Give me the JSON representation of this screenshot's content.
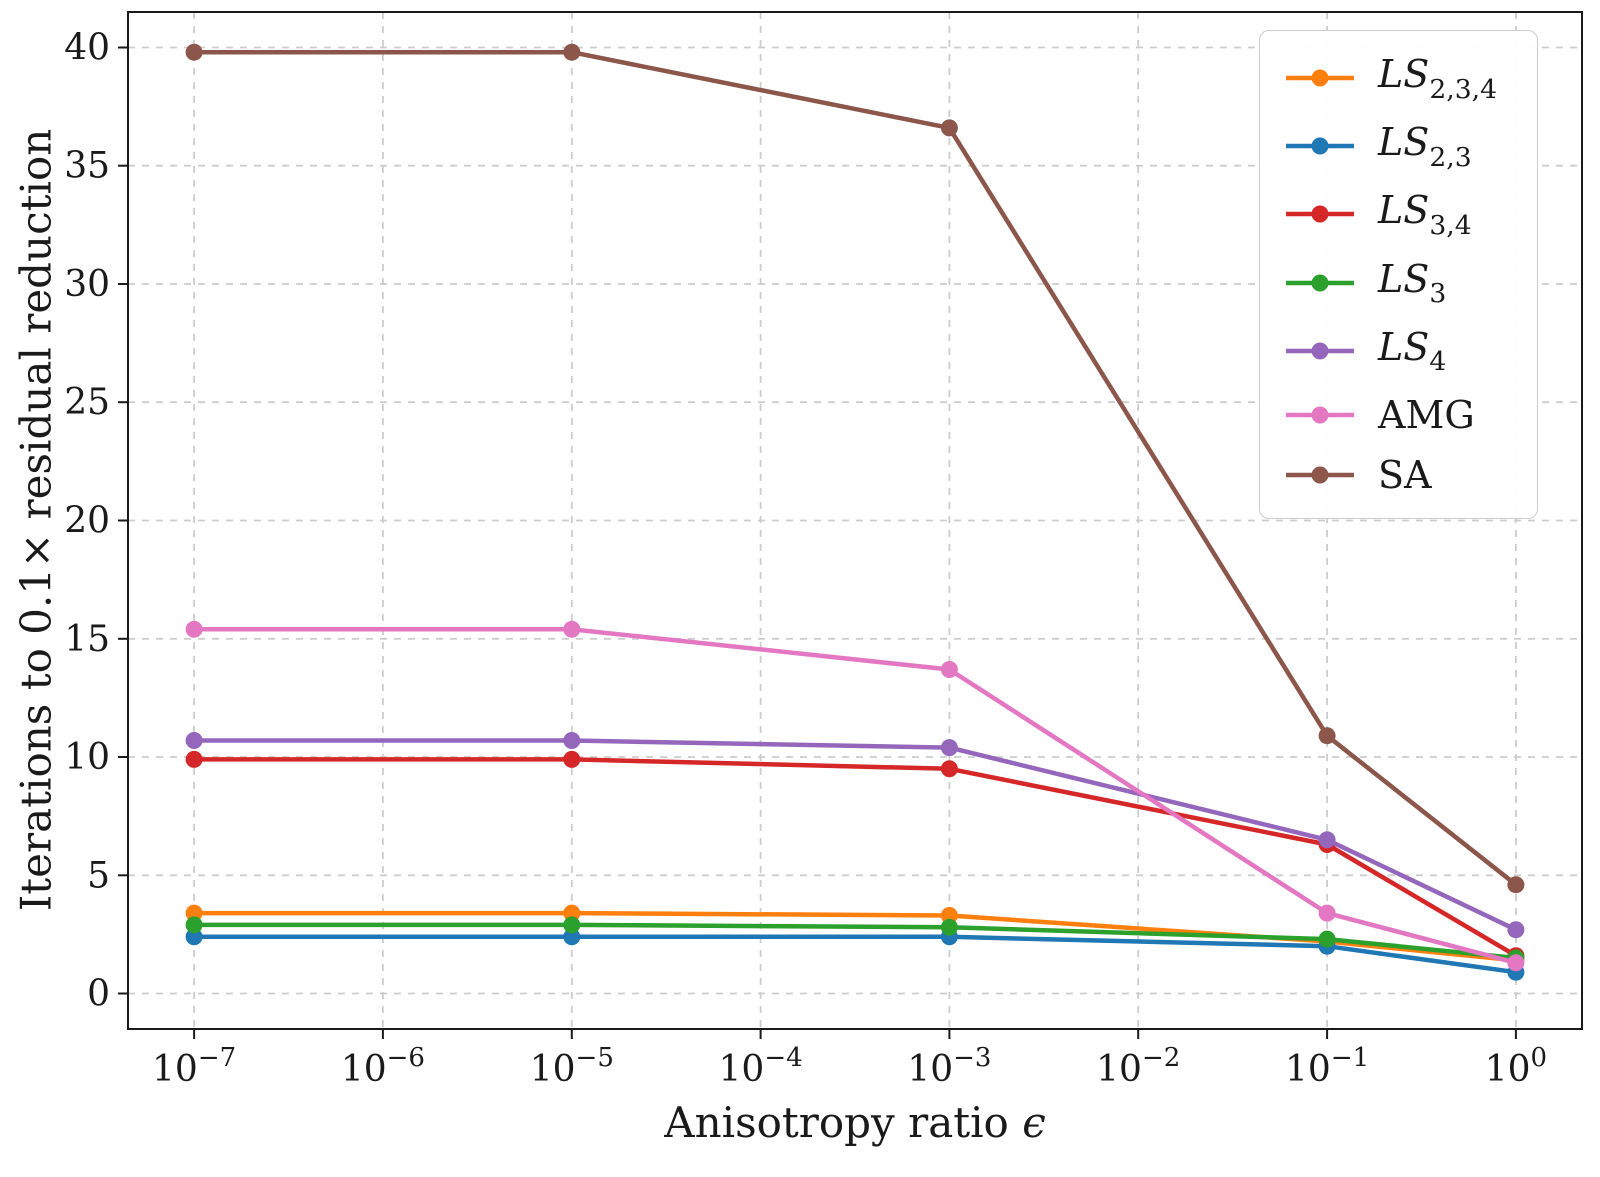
{
  "chart_data": {
    "type": "line",
    "title": "",
    "xlabel": "Anisotropy ratio ϵ",
    "ylabel": "Iterations to 0.1× residual reduction",
    "x_scale": "log",
    "x": [
      1e-07,
      1e-05,
      0.001,
      0.1,
      1
    ],
    "xlim_log": [
      -7.35,
      0.35
    ],
    "ylim": [
      -1.5,
      41.5
    ],
    "x_tick_exponents": [
      -7,
      -6,
      -5,
      -4,
      -3,
      -2,
      -1,
      0
    ],
    "x_tick_base": "10",
    "y_ticks": [
      0,
      5,
      10,
      15,
      20,
      25,
      30,
      35,
      40
    ],
    "grid": true,
    "grid_style": "dashed",
    "legend_position": "upper right",
    "series": [
      {
        "label": "LS",
        "sub": "2,3,4",
        "italic": true,
        "color": "#ff7f0e",
        "values": [
          3.4,
          3.4,
          3.3,
          2.2,
          1.4
        ]
      },
      {
        "label": "LS",
        "sub": "2,3",
        "italic": true,
        "color": "#1f77b4",
        "values": [
          2.4,
          2.4,
          2.4,
          2.0,
          0.9
        ]
      },
      {
        "label": "LS",
        "sub": "3,4",
        "italic": true,
        "color": "#d62728",
        "values": [
          9.9,
          9.9,
          9.5,
          6.3,
          1.6
        ]
      },
      {
        "label": "LS",
        "sub": "3",
        "italic": true,
        "color": "#2ca02c",
        "values": [
          2.9,
          2.9,
          2.8,
          2.3,
          1.5
        ]
      },
      {
        "label": "LS",
        "sub": "4",
        "italic": true,
        "color": "#9467bd",
        "values": [
          10.7,
          10.7,
          10.4,
          6.5,
          2.7
        ]
      },
      {
        "label": "AMG",
        "sub": "",
        "italic": false,
        "color": "#e377c2",
        "values": [
          15.4,
          15.4,
          13.7,
          3.4,
          1.3
        ]
      },
      {
        "label": "SA",
        "sub": "",
        "italic": false,
        "color": "#8c564b",
        "values": [
          39.8,
          39.8,
          36.6,
          10.9,
          4.6
        ]
      }
    ],
    "line_width": 4.5,
    "marker": "circle",
    "marker_radius": 8.5,
    "spine_color": "#1a1a1a",
    "grid_color": "#cdcdcd",
    "background": "#ffffff"
  }
}
